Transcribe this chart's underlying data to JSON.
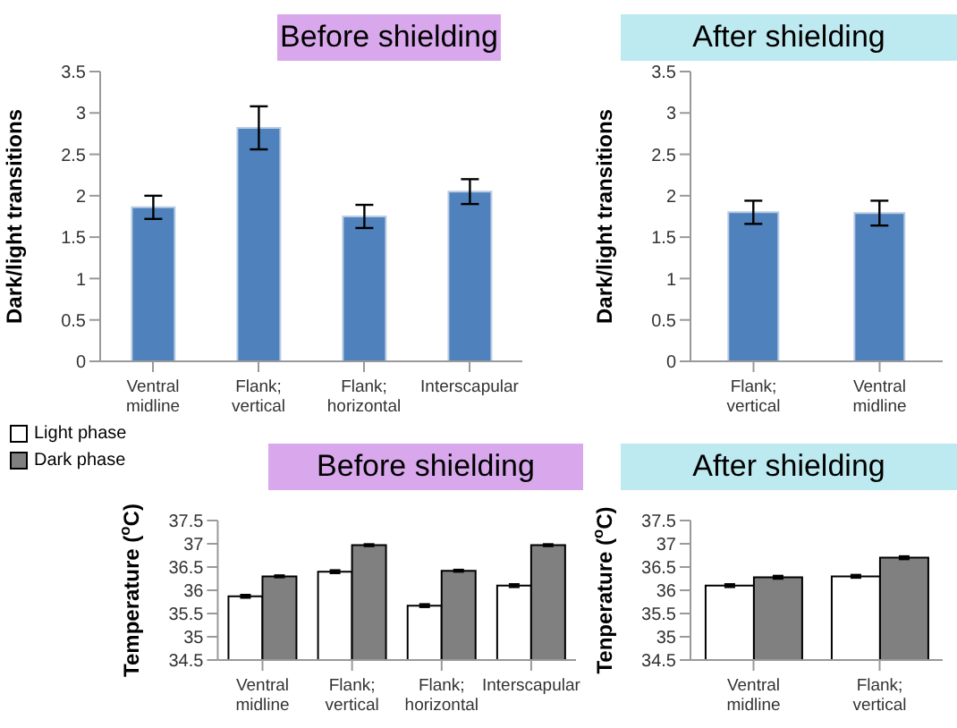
{
  "chart_data": [
    {
      "type": "bar",
      "title": "Before shielding",
      "ylabel": "Dark/light transitions",
      "categories": [
        "Ventral midline",
        "Flank; vertical",
        "Flank; horizontal",
        "Interscapular"
      ],
      "series": [
        {
          "color": "#4f81bd",
          "values": [
            1.86,
            2.82,
            1.75,
            2.05
          ],
          "errors": [
            0.14,
            0.26,
            0.14,
            0.15
          ]
        }
      ],
      "ylim": [
        0,
        3.5
      ],
      "yticks": [
        0,
        0.5,
        1,
        1.5,
        2,
        2.5,
        3,
        3.5
      ],
      "grid": false,
      "legend": false
    },
    {
      "type": "bar",
      "title": "After shielding",
      "ylabel": "Dark/light transitions",
      "categories": [
        "Flank; vertical",
        "Ventral midline"
      ],
      "series": [
        {
          "color": "#4f81bd",
          "values": [
            1.8,
            1.79
          ],
          "errors": [
            0.14,
            0.15
          ]
        }
      ],
      "ylim": [
        0,
        3.5
      ],
      "yticks": [
        0,
        0.5,
        1,
        1.5,
        2,
        2.5,
        3,
        3.5
      ],
      "grid": false,
      "legend": false
    },
    {
      "type": "bar",
      "title": "Before shielding",
      "ylabel": "Temperature ($^{o}$C)",
      "categories": [
        "Ventral midline",
        "Flank; vertical",
        "Flank; horizontal",
        "Interscapular"
      ],
      "series": [
        {
          "name": "Light phase",
          "color": "#ffffff",
          "values": [
            35.87,
            36.4,
            35.67,
            36.1
          ],
          "errors": [
            0.03,
            0.03,
            0.03,
            0.03
          ]
        },
        {
          "name": "Dark phase",
          "color": "#808080",
          "values": [
            36.3,
            36.97,
            36.42,
            36.97
          ],
          "errors": [
            0.02,
            0.02,
            0.02,
            0.02
          ]
        }
      ],
      "ylim": [
        34.5,
        37.5
      ],
      "yticks": [
        34.5,
        35,
        35.5,
        36,
        36.5,
        37,
        37.5
      ],
      "grid": false,
      "legend": "top left"
    },
    {
      "type": "bar",
      "title": "After shielding",
      "ylabel": "Tenperature ($^{o}$C)",
      "categories": [
        "Ventral midline",
        "Flank; vertical"
      ],
      "series": [
        {
          "color": "#ffffff",
          "values": [
            36.1,
            36.3
          ],
          "errors": [
            0.03,
            0.03
          ]
        },
        {
          "color": "#808080",
          "values": [
            36.28,
            36.7
          ],
          "errors": [
            0.03,
            0.03
          ]
        }
      ],
      "ylim": [
        34.5,
        37.5
      ],
      "yticks": [
        34.5,
        35,
        35.5,
        36,
        36.5,
        37,
        37.5
      ],
      "grid": false,
      "legend": false
    }
  ]
}
